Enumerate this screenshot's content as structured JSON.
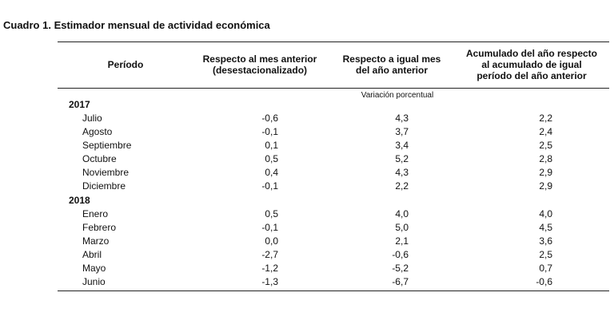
{
  "title": "Cuadro 1. Estimador mensual de actividad económica",
  "table": {
    "headers": [
      "Período",
      "Respecto al mes anterior\n(desestacionalizado)",
      "Respecto a igual mes\ndel año anterior",
      "Acumulado del año respecto\nal acumulado de igual\nperíodo del año anterior"
    ],
    "unit_note": "Variación porcentual",
    "groups": [
      {
        "year": "2017",
        "rows": [
          [
            "Julio",
            "-0,6",
            "4,3",
            "2,2"
          ],
          [
            "Agosto",
            "-0,1",
            "3,7",
            "2,4"
          ],
          [
            "Septiembre",
            "0,1",
            "3,4",
            "2,5"
          ],
          [
            "Octubre",
            "0,5",
            "5,2",
            "2,8"
          ],
          [
            "Noviembre",
            "0,4",
            "4,3",
            "2,9"
          ],
          [
            "Diciembre",
            "-0,1",
            "2,2",
            "2,9"
          ]
        ]
      },
      {
        "year": "2018",
        "rows": [
          [
            "Enero",
            "0,5",
            "4,0",
            "4,0"
          ],
          [
            "Febrero",
            "-0,1",
            "5,0",
            "4,5"
          ],
          [
            "Marzo",
            "0,0",
            "2,1",
            "3,6"
          ],
          [
            "Abril",
            "-2,7",
            "-0,6",
            "2,5"
          ],
          [
            "Mayo",
            "-1,2",
            "-5,2",
            "0,7"
          ],
          [
            "Junio",
            "-1,3",
            "-6,7",
            "-0,6"
          ]
        ]
      }
    ]
  }
}
